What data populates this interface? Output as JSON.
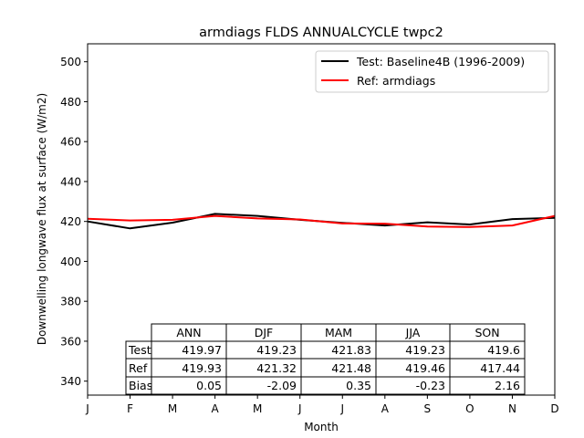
{
  "chart_data": {
    "type": "line",
    "title": "armdiags FLDS ANNUALCYCLE twpc2",
    "xlabel": "Month",
    "ylabel": "Downwelling longwave flux at surface (W/m2)",
    "x_ticks": [
      "J",
      "F",
      "M",
      "A",
      "M",
      "J",
      "J",
      "A",
      "S",
      "O",
      "N",
      "D"
    ],
    "ylim": [
      333,
      509
    ],
    "y_ticks": [
      340,
      360,
      380,
      400,
      420,
      440,
      460,
      480,
      500
    ],
    "grid": false,
    "legend_position": "top-right",
    "series": [
      {
        "name": "Test: Baseline4B (1996-2009)",
        "color": "#000000",
        "values": [
          420.0,
          416.5,
          419.4,
          423.8,
          422.8,
          420.8,
          419.3,
          418.0,
          419.6,
          418.5,
          421.2,
          421.8
        ]
      },
      {
        "name": "Ref: armdiags",
        "color": "#ff0000",
        "values": [
          421.3,
          420.5,
          420.8,
          422.8,
          421.5,
          421.0,
          419.0,
          418.9,
          417.5,
          417.2,
          418.0,
          422.8
        ]
      }
    ],
    "table": {
      "columns": [
        "ANN",
        "DJF",
        "MAM",
        "JJA",
        "SON"
      ],
      "rows": [
        {
          "label": "Test",
          "values": [
            "419.97",
            "419.23",
            "421.83",
            "419.23",
            "419.6"
          ]
        },
        {
          "label": "Ref",
          "values": [
            "419.93",
            "421.32",
            "421.48",
            "419.46",
            "417.44"
          ]
        },
        {
          "label": "Bias",
          "values": [
            "0.05",
            "-2.09",
            "0.35",
            "-0.23",
            "2.16"
          ]
        }
      ]
    }
  }
}
